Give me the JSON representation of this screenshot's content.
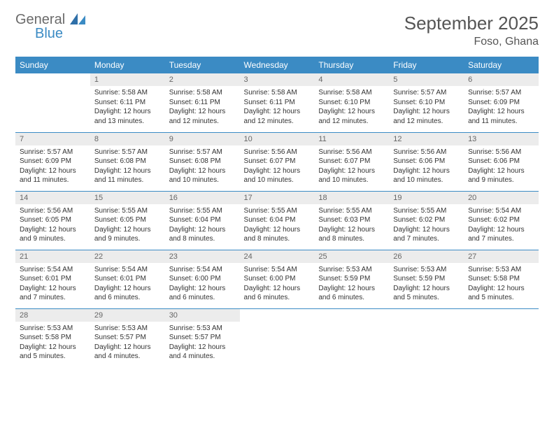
{
  "brand": {
    "part1": "General",
    "part2": "Blue"
  },
  "title": "September 2025",
  "location": "Foso, Ghana",
  "colors": {
    "accent": "#3b8bc4",
    "daynum_bg": "#ececec",
    "text": "#333333"
  },
  "dayHeaders": [
    "Sunday",
    "Monday",
    "Tuesday",
    "Wednesday",
    "Thursday",
    "Friday",
    "Saturday"
  ],
  "weeks": [
    [
      null,
      {
        "n": "1",
        "sr": "Sunrise: 5:58 AM",
        "ss": "Sunset: 6:11 PM",
        "dl": "Daylight: 12 hours and 13 minutes."
      },
      {
        "n": "2",
        "sr": "Sunrise: 5:58 AM",
        "ss": "Sunset: 6:11 PM",
        "dl": "Daylight: 12 hours and 12 minutes."
      },
      {
        "n": "3",
        "sr": "Sunrise: 5:58 AM",
        "ss": "Sunset: 6:11 PM",
        "dl": "Daylight: 12 hours and 12 minutes."
      },
      {
        "n": "4",
        "sr": "Sunrise: 5:58 AM",
        "ss": "Sunset: 6:10 PM",
        "dl": "Daylight: 12 hours and 12 minutes."
      },
      {
        "n": "5",
        "sr": "Sunrise: 5:57 AM",
        "ss": "Sunset: 6:10 PM",
        "dl": "Daylight: 12 hours and 12 minutes."
      },
      {
        "n": "6",
        "sr": "Sunrise: 5:57 AM",
        "ss": "Sunset: 6:09 PM",
        "dl": "Daylight: 12 hours and 11 minutes."
      }
    ],
    [
      {
        "n": "7",
        "sr": "Sunrise: 5:57 AM",
        "ss": "Sunset: 6:09 PM",
        "dl": "Daylight: 12 hours and 11 minutes."
      },
      {
        "n": "8",
        "sr": "Sunrise: 5:57 AM",
        "ss": "Sunset: 6:08 PM",
        "dl": "Daylight: 12 hours and 11 minutes."
      },
      {
        "n": "9",
        "sr": "Sunrise: 5:57 AM",
        "ss": "Sunset: 6:08 PM",
        "dl": "Daylight: 12 hours and 10 minutes."
      },
      {
        "n": "10",
        "sr": "Sunrise: 5:56 AM",
        "ss": "Sunset: 6:07 PM",
        "dl": "Daylight: 12 hours and 10 minutes."
      },
      {
        "n": "11",
        "sr": "Sunrise: 5:56 AM",
        "ss": "Sunset: 6:07 PM",
        "dl": "Daylight: 12 hours and 10 minutes."
      },
      {
        "n": "12",
        "sr": "Sunrise: 5:56 AM",
        "ss": "Sunset: 6:06 PM",
        "dl": "Daylight: 12 hours and 10 minutes."
      },
      {
        "n": "13",
        "sr": "Sunrise: 5:56 AM",
        "ss": "Sunset: 6:06 PM",
        "dl": "Daylight: 12 hours and 9 minutes."
      }
    ],
    [
      {
        "n": "14",
        "sr": "Sunrise: 5:56 AM",
        "ss": "Sunset: 6:05 PM",
        "dl": "Daylight: 12 hours and 9 minutes."
      },
      {
        "n": "15",
        "sr": "Sunrise: 5:55 AM",
        "ss": "Sunset: 6:05 PM",
        "dl": "Daylight: 12 hours and 9 minutes."
      },
      {
        "n": "16",
        "sr": "Sunrise: 5:55 AM",
        "ss": "Sunset: 6:04 PM",
        "dl": "Daylight: 12 hours and 8 minutes."
      },
      {
        "n": "17",
        "sr": "Sunrise: 5:55 AM",
        "ss": "Sunset: 6:04 PM",
        "dl": "Daylight: 12 hours and 8 minutes."
      },
      {
        "n": "18",
        "sr": "Sunrise: 5:55 AM",
        "ss": "Sunset: 6:03 PM",
        "dl": "Daylight: 12 hours and 8 minutes."
      },
      {
        "n": "19",
        "sr": "Sunrise: 5:55 AM",
        "ss": "Sunset: 6:02 PM",
        "dl": "Daylight: 12 hours and 7 minutes."
      },
      {
        "n": "20",
        "sr": "Sunrise: 5:54 AM",
        "ss": "Sunset: 6:02 PM",
        "dl": "Daylight: 12 hours and 7 minutes."
      }
    ],
    [
      {
        "n": "21",
        "sr": "Sunrise: 5:54 AM",
        "ss": "Sunset: 6:01 PM",
        "dl": "Daylight: 12 hours and 7 minutes."
      },
      {
        "n": "22",
        "sr": "Sunrise: 5:54 AM",
        "ss": "Sunset: 6:01 PM",
        "dl": "Daylight: 12 hours and 6 minutes."
      },
      {
        "n": "23",
        "sr": "Sunrise: 5:54 AM",
        "ss": "Sunset: 6:00 PM",
        "dl": "Daylight: 12 hours and 6 minutes."
      },
      {
        "n": "24",
        "sr": "Sunrise: 5:54 AM",
        "ss": "Sunset: 6:00 PM",
        "dl": "Daylight: 12 hours and 6 minutes."
      },
      {
        "n": "25",
        "sr": "Sunrise: 5:53 AM",
        "ss": "Sunset: 5:59 PM",
        "dl": "Daylight: 12 hours and 6 minutes."
      },
      {
        "n": "26",
        "sr": "Sunrise: 5:53 AM",
        "ss": "Sunset: 5:59 PM",
        "dl": "Daylight: 12 hours and 5 minutes."
      },
      {
        "n": "27",
        "sr": "Sunrise: 5:53 AM",
        "ss": "Sunset: 5:58 PM",
        "dl": "Daylight: 12 hours and 5 minutes."
      }
    ],
    [
      {
        "n": "28",
        "sr": "Sunrise: 5:53 AM",
        "ss": "Sunset: 5:58 PM",
        "dl": "Daylight: 12 hours and 5 minutes."
      },
      {
        "n": "29",
        "sr": "Sunrise: 5:53 AM",
        "ss": "Sunset: 5:57 PM",
        "dl": "Daylight: 12 hours and 4 minutes."
      },
      {
        "n": "30",
        "sr": "Sunrise: 5:53 AM",
        "ss": "Sunset: 5:57 PM",
        "dl": "Daylight: 12 hours and 4 minutes."
      },
      null,
      null,
      null,
      null
    ]
  ]
}
